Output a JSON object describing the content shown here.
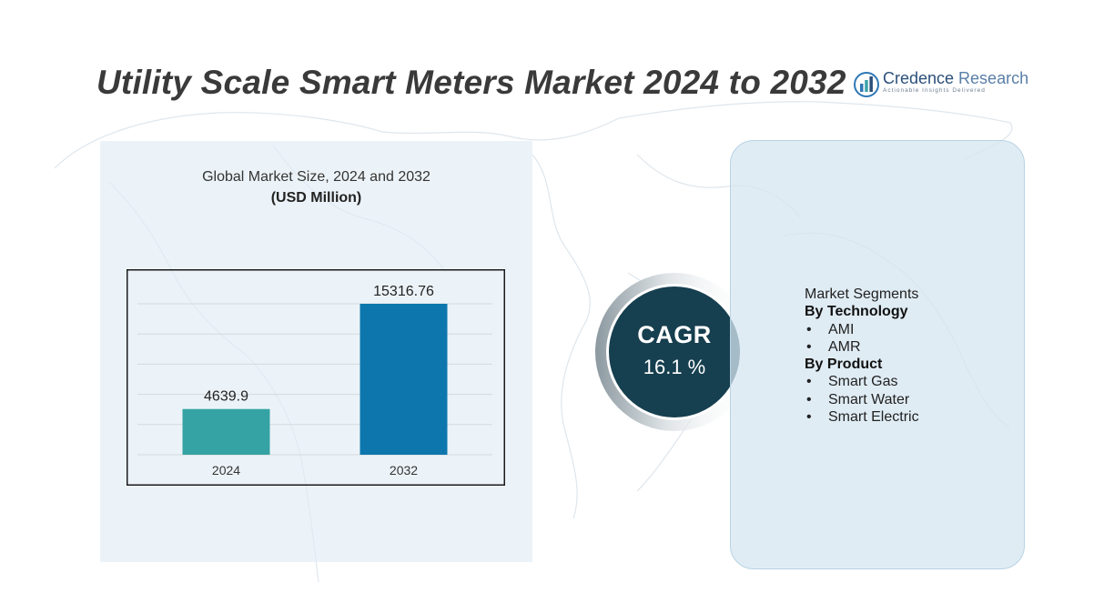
{
  "title": "Utility Scale Smart Meters Market 2024 to 2032",
  "logo": {
    "name_bold": "Credence",
    "name_light": " Research",
    "tagline": "Actionable Insights Delivered",
    "icon": "bar-chart-logo-icon"
  },
  "chart_data": {
    "type": "bar",
    "title": "Global Market Size, 2024 and 2032",
    "subtitle": "(USD Million)",
    "categories": [
      "2024",
      "2032"
    ],
    "values": [
      4639.9,
      15316.76
    ],
    "value_labels": [
      "4639.9",
      "15316.76"
    ],
    "bar_colors": [
      "#35a3a3",
      "#0d77ad"
    ],
    "grid": true,
    "legend": "none"
  },
  "cagr": {
    "label": "CAGR",
    "value": "16.1 %",
    "circle_color": "#163f4f"
  },
  "segments": {
    "heading": "Market Segments",
    "groups": [
      {
        "title": "By Technology",
        "items": [
          "AMI",
          "AMR"
        ]
      },
      {
        "title": "By Product",
        "items": [
          "Smart Gas",
          "Smart Water",
          "Smart Electric"
        ]
      }
    ]
  }
}
